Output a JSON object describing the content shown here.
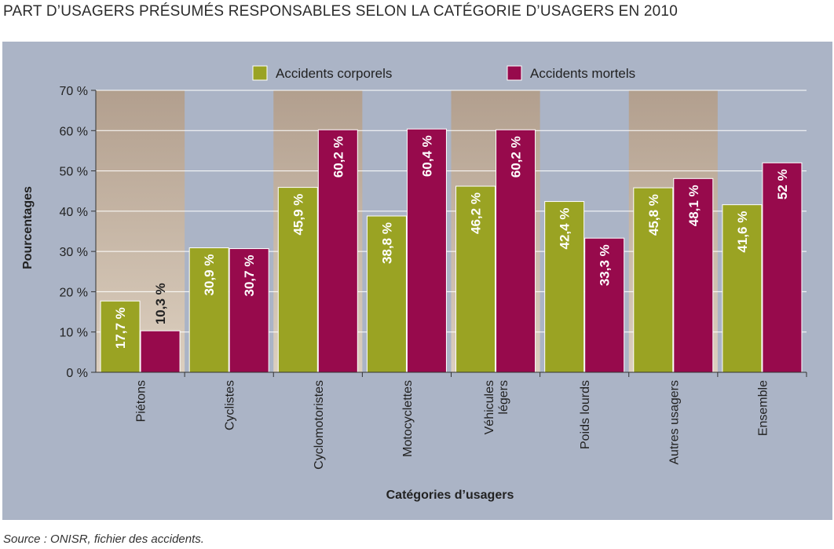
{
  "page_title": "PART D’USAGERS PRÉSUMÉS RESPONSABLES SELON LA CATÉGORIE D’USAGERS EN 2010",
  "source": "Source : ONISR, fichier des accidents.",
  "colors": {
    "panel": "#abb4c6",
    "band_top": "#b29f8e",
    "band_bottom": "#dccfbf",
    "series_corporels": "#9aa323",
    "series_mortels": "#970a4c",
    "grid": "#ffffff",
    "axis": "#333333"
  },
  "chart_data": {
    "type": "bar",
    "title": "",
    "xlabel": "Catégories d’usagers",
    "ylabel": "Pourcentages",
    "ylim": [
      0,
      70
    ],
    "yticks": [
      0,
      10,
      20,
      30,
      40,
      50,
      60,
      70
    ],
    "ytick_labels": [
      "0 %",
      "10 %",
      "20 %",
      "30 %",
      "40 %",
      "50 %",
      "60 %",
      "70 %"
    ],
    "grid": true,
    "legend_position": "top-center",
    "categories": [
      "Piétons",
      "Cyclistes",
      "Cyclomotoristes",
      "Motocyclettes",
      "Véhicules\nlégers",
      "Poids lourds",
      "Autres usagers",
      "Ensemble"
    ],
    "shaded_categories": [
      0,
      2,
      4,
      6
    ],
    "series": [
      {
        "name": "Accidents corporels",
        "values": [
          17.7,
          30.9,
          45.9,
          38.8,
          46.2,
          42.4,
          45.8,
          41.6
        ],
        "labels": [
          "17,7 %",
          "30,9 %",
          "45,9 %",
          "38,8 %",
          "46,2 %",
          "42,4 %",
          "45,8 %",
          "41,6 %"
        ]
      },
      {
        "name": "Accidents mortels",
        "values": [
          10.3,
          30.7,
          60.2,
          60.4,
          60.2,
          33.3,
          48.1,
          52
        ],
        "labels": [
          "10,3 %",
          "30,7 %",
          "60,2 %",
          "60,4 %",
          "60,2 %",
          "33,3 %",
          "48,1 %",
          "52 %"
        ]
      }
    ]
  }
}
